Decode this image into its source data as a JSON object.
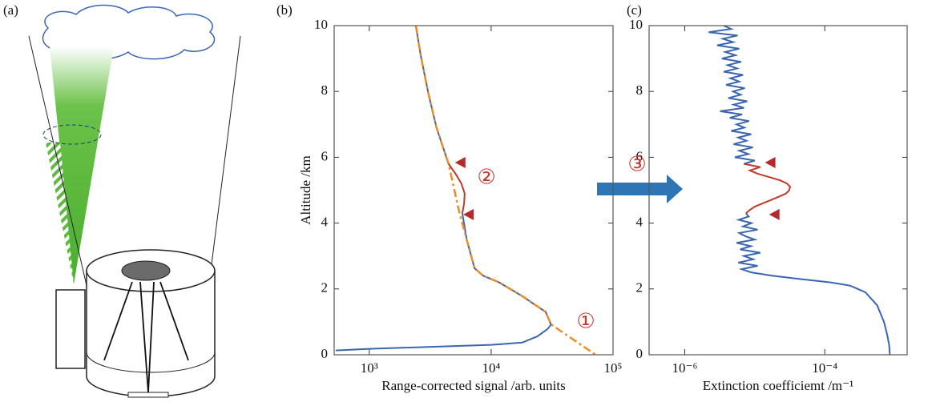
{
  "panel_a": {
    "label": "(a)"
  },
  "chart_data": [
    {
      "type": "line",
      "panel_label": "(b)",
      "xlabel": "Range-corrected signal /arb. units",
      "ylabel": "Altitude /km",
      "xscale": "log",
      "xlim": [
        515,
        100000
      ],
      "ylim": [
        0,
        10
      ],
      "xticks": [
        {
          "value": 1000,
          "label": "10³"
        },
        {
          "value": 10000,
          "label": "10⁴"
        },
        {
          "value": 100000,
          "label": "10⁵"
        }
      ],
      "yticks": [
        0,
        2,
        4,
        6,
        8,
        10
      ],
      "series": [
        {
          "color": "#3a66b0",
          "dash": false,
          "x": [
            530,
            1000,
            10000,
            18000,
            24000,
            29000,
            31000,
            28000,
            18000,
            11600,
            8600,
            7300,
            6300,
            5800,
            null,
            4470,
            3560,
            3070,
            2640,
            2410
          ],
          "y": [
            0.13,
            0.18,
            0.3,
            0.37,
            0.56,
            0.78,
            0.92,
            1.3,
            1.78,
            2.2,
            2.4,
            2.63,
            3.5,
            4.3,
            null,
            5.8,
            6.9,
            7.9,
            9.1,
            10
          ]
        },
        {
          "color": "#f08a24",
          "dash": true,
          "x": [
            2410,
            2640,
            3070,
            3560,
            4470,
            5500,
            6300,
            7300,
            8600,
            11600,
            18000,
            28000,
            31000,
            72000
          ],
          "y": [
            10,
            9.1,
            7.9,
            6.9,
            5.8,
            4.3,
            3.5,
            2.63,
            2.4,
            2.2,
            1.78,
            1.3,
            0.92,
            0
          ]
        },
        {
          "color": "#c0392b",
          "dash": false,
          "x": [
            5800,
            6000,
            6060,
            5700,
            5100,
            4470
          ],
          "y": [
            4.3,
            4.6,
            4.9,
            5.2,
            5.5,
            5.8
          ]
        }
      ],
      "markers": {
        "color": "#b52a2a",
        "x": [
          5050,
          5900
        ],
        "y": [
          5.84,
          4.26
        ]
      },
      "annotations": [
        "①",
        "②"
      ]
    },
    {
      "type": "line",
      "panel_label": "(c)",
      "xlabel": "Extinction coefficiemt /m⁻¹",
      "xscale": "log",
      "xlim": [
        3.1e-07,
        0.0015
      ],
      "ylim": [
        0,
        10
      ],
      "xticks": [
        {
          "value": 1e-06,
          "label": "10⁻⁶"
        },
        {
          "value": 0.0001,
          "label": "10⁻⁴"
        }
      ],
      "yticks": [
        0,
        2,
        4,
        6,
        8,
        10
      ],
      "series": [
        {
          "color": "#3a66b0",
          "dash": false,
          "x": [
            0.00085,
            0.00083,
            0.00078,
            0.0007,
            0.00056,
            0.00038,
            0.00023,
            0.00012,
            4.5e-05,
            1.8e-05,
            9e-06,
            6.5e-06,
            1.1e-05,
            5.8e-06,
            9.5e-06,
            7e-06,
            1.2e-05,
            6.2e-06,
            8.8e-06,
            5.5e-06,
            1e-05,
            7.4e-06,
            6e-06,
            1.1e-05,
            6.8e-06,
            9e-06,
            5.9e-06,
            8.2e-06,
            7.5e-06,
            null,
            7e-06,
            1e-05,
            5.2e-06,
            8.1e-06,
            6e-06,
            9.4e-06,
            5e-06,
            7.6e-06,
            5.8e-06,
            8.9e-06,
            4.6e-06,
            7.1e-06,
            5.5e-06,
            8.3e-06,
            4.4e-06,
            6.6e-06,
            3.2e-06,
            7e-06,
            5e-06,
            7.8e-06,
            4.2e-06,
            6.3e-06,
            4.9e-06,
            7.2e-06,
            3.9e-06,
            6e-06,
            4.5e-06,
            6.8e-06,
            3.6e-06,
            5.6e-06,
            4.1e-06,
            6.4e-06,
            3.4e-06,
            5.3e-06,
            3.8e-06,
            6e-06,
            2.9e-06,
            4.9e-06,
            3.5e-06,
            5.7e-06,
            2.2e-06,
            4.6e-06,
            3.6e-06
          ],
          "y": [
            0,
            0.3,
            0.6,
            1,
            1.5,
            1.9,
            2.1,
            2.2,
            2.3,
            2.4,
            2.5,
            2.6,
            2.7,
            2.8,
            2.9,
            3.0,
            3.1,
            3.2,
            3.3,
            3.4,
            3.5,
            3.6,
            3.7,
            3.8,
            3.9,
            4.0,
            4.1,
            4.2,
            4.3,
            null,
            5.8,
            5.9,
            6.0,
            6.1,
            6.2,
            6.3,
            6.4,
            6.5,
            6.6,
            6.7,
            6.8,
            6.9,
            7.0,
            7.1,
            7.2,
            7.3,
            7.4,
            7.5,
            7.6,
            7.7,
            7.8,
            7.9,
            8.0,
            8.1,
            8.2,
            8.3,
            8.4,
            8.5,
            8.6,
            8.7,
            8.8,
            8.9,
            9.0,
            9.1,
            9.2,
            9.3,
            9.4,
            9.5,
            9.6,
            9.7,
            9.8,
            9.9,
            10.0
          ]
        },
        {
          "color": "#c0392b",
          "dash": false,
          "x": [
            7.5e-06,
            8.5e-06,
            1e-05,
            1.3e-05,
            1.7e-05,
            2.2e-05,
            2.8e-05,
            3.1e-05,
            3.2e-05,
            2.9e-05,
            2.3e-05,
            1.6e-05,
            1.1e-05,
            8.5e-06,
            1.2e-05,
            7e-06
          ],
          "y": [
            4.3,
            4.4,
            4.5,
            4.6,
            4.7,
            4.8,
            4.9,
            5.0,
            5.1,
            5.2,
            5.3,
            5.4,
            5.5,
            5.6,
            5.7,
            5.8
          ]
        }
      ],
      "markers": {
        "color": "#b52a2a",
        "x": [
          1.4e-05,
          1.6e-05
        ],
        "y": [
          5.84,
          4.26
        ]
      },
      "annotations": [
        "③"
      ]
    }
  ]
}
